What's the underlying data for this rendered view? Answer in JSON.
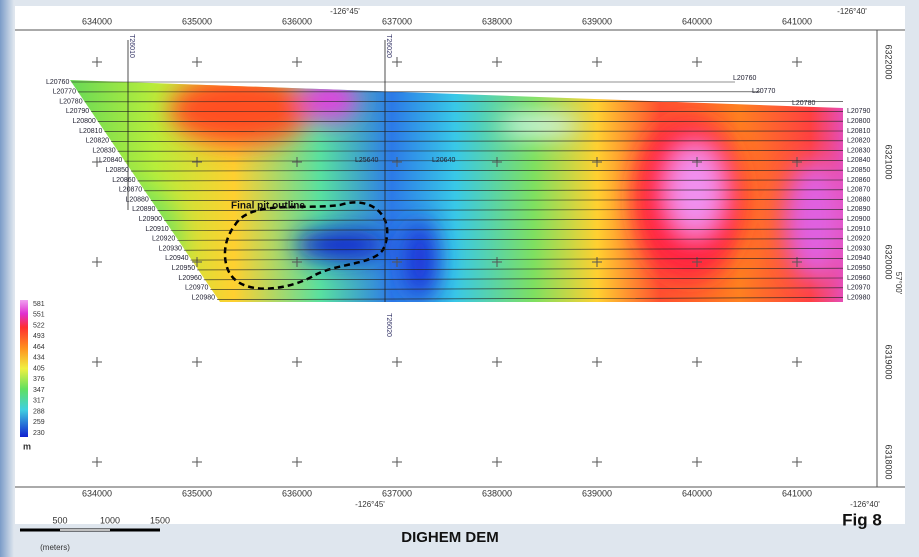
{
  "map": {
    "title": "DIGHEM DEM",
    "figure": "Fig 8",
    "eastings": [
      "634000",
      "635000",
      "636000",
      "637000",
      "638000",
      "639000",
      "640000",
      "641000"
    ],
    "northings": [
      "6322000",
      "6321000",
      "6320000",
      "6319000",
      "6318000"
    ],
    "longitudes": {
      "top_left": "-126°45'",
      "top_right": "-126°40'",
      "bottom_left": "-126°45'",
      "bottom_right": "-126°40'"
    },
    "latitude": "57°00'",
    "flight_lines": [
      "L20760",
      "L20770",
      "L20780",
      "L20790",
      "L20800",
      "L20810",
      "L20820",
      "L20830",
      "L20840",
      "L20850",
      "L20860",
      "L20870",
      "L20880",
      "L20890",
      "L20900",
      "L20910",
      "L20920",
      "L20930",
      "L20940",
      "L20950",
      "L20960",
      "L20970",
      "L20980"
    ],
    "tie_lines": [
      "T26010",
      "T26020"
    ],
    "line_notes": [
      "L25640",
      "L20640"
    ],
    "annotation": "Final pit outline",
    "legend": {
      "values": [
        "581",
        "551",
        "522",
        "493",
        "464",
        "434",
        "405",
        "376",
        "347",
        "317",
        "288",
        "259",
        "230"
      ],
      "unit": "m"
    },
    "scale_bar": {
      "labels": [
        "500",
        "1000",
        "1500"
      ],
      "unit": "(meters)"
    }
  }
}
